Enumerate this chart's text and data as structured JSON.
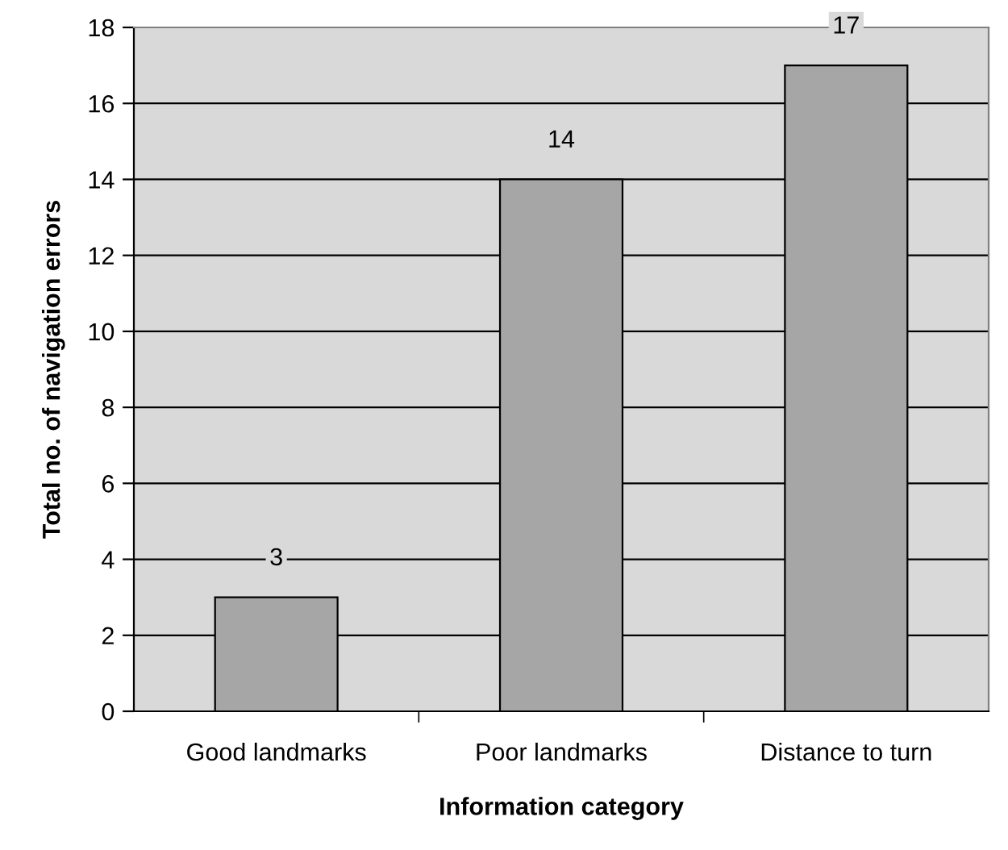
{
  "chart_data": {
    "type": "bar",
    "xlabel": "Information category",
    "ylabel": "Total no. of navigation errors",
    "categories": [
      "Good landmarks",
      "Poor landmarks",
      "Distance to turn"
    ],
    "values": [
      3,
      14,
      17
    ],
    "color": "#a6a6a6",
    "ylim": [
      0,
      18
    ],
    "yticks": [
      0,
      2,
      4,
      6,
      8,
      10,
      12,
      14,
      16,
      18
    ],
    "grid": "y",
    "data_labels": true
  }
}
